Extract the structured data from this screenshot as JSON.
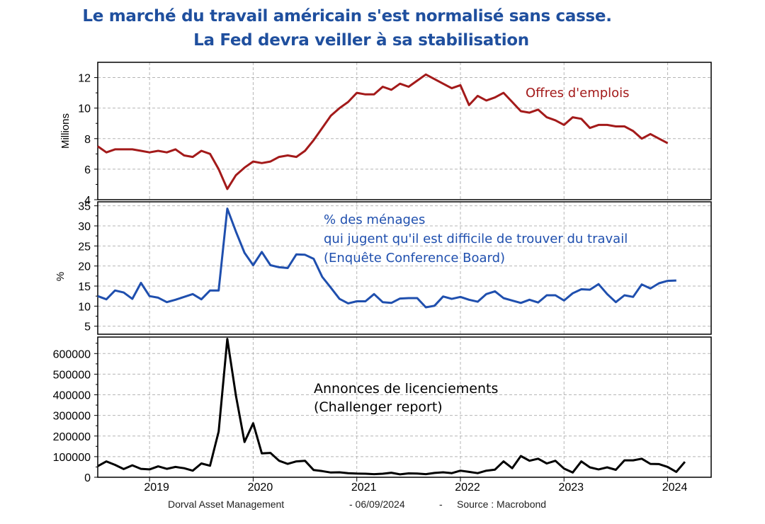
{
  "title_line1": "Le marché du travail américain s'est normalisé sans casse.",
  "title_line2": "La Fed devra veiller à sa stabilisation",
  "footer": {
    "author": "Dorval Asset Management",
    "date": "- 06/09/2024",
    "sep": "-",
    "source": "Source : Macrobond"
  },
  "chart_data": [
    {
      "type": "line",
      "annotation": "Offres d'emplois",
      "ylabel": "Millions",
      "ylim": [
        4,
        13
      ],
      "yticks": [
        4,
        6,
        8,
        10,
        12
      ],
      "color": "#a31a1a",
      "x_start": 2018.5,
      "x_step": 0.0833333,
      "values": [
        7.5,
        7.1,
        7.3,
        7.3,
        7.3,
        7.2,
        7.1,
        7.2,
        7.1,
        7.3,
        6.9,
        6.8,
        7.2,
        7.0,
        6.0,
        4.7,
        5.6,
        6.1,
        6.5,
        6.4,
        6.5,
        6.8,
        6.9,
        6.8,
        7.2,
        7.9,
        8.7,
        9.5,
        10.0,
        10.4,
        11.0,
        10.9,
        10.9,
        11.4,
        11.2,
        11.6,
        11.4,
        11.8,
        12.2,
        11.9,
        11.6,
        11.3,
        11.5,
        10.2,
        10.8,
        10.5,
        10.7,
        11.0,
        10.4,
        9.8,
        9.7,
        9.9,
        9.4,
        9.2,
        8.9,
        9.4,
        9.3,
        8.7,
        8.9,
        8.9,
        8.8,
        8.8,
        8.5,
        8.0,
        8.3,
        8.0,
        7.7
      ]
    },
    {
      "type": "line",
      "annotation": [
        "% des ménages",
        "qui jugent qu'il est difficile de trouver du travail",
        "(Enquête Conference Board)"
      ],
      "ylabel": "%",
      "ylim": [
        3,
        36
      ],
      "yticks": [
        5,
        10,
        15,
        20,
        25,
        30,
        35
      ],
      "color": "#1f4fae",
      "x_start": 2018.5,
      "x_step": 0.0833333,
      "values": [
        12.5,
        11.7,
        13.9,
        13.4,
        11.8,
        15.8,
        12.5,
        12.1,
        11.0,
        11.6,
        12.3,
        13.0,
        11.7,
        13.9,
        13.9,
        34.3,
        28.6,
        23.3,
        20.2,
        23.5,
        20.2,
        19.7,
        19.5,
        22.9,
        22.8,
        21.8,
        17.3,
        14.6,
        11.8,
        10.7,
        11.2,
        11.2,
        13.0,
        11.0,
        10.8,
        11.9,
        12.0,
        12.0,
        9.7,
        10.1,
        12.4,
        11.8,
        12.3,
        11.6,
        11.1,
        13.0,
        13.7,
        12.0,
        11.4,
        10.8,
        11.6,
        10.9,
        12.7,
        12.7,
        11.4,
        13.2,
        14.2,
        14.1,
        15.5,
        13.0,
        11.0,
        12.7,
        12.3,
        15.4,
        14.4,
        15.7,
        16.3,
        16.4
      ]
    },
    {
      "type": "line",
      "annotation": [
        "Annonces de licenciements",
        "(Challenger report)"
      ],
      "ylabel": "",
      "ylim": [
        0,
        680000
      ],
      "yticks": [
        0,
        100000,
        200000,
        300000,
        400000,
        500000,
        600000
      ],
      "color": "#000000",
      "x_start": 2018.5,
      "x_step": 0.0833333,
      "values": [
        54000,
        77000,
        60000,
        40000,
        58000,
        41000,
        38000,
        53000,
        41000,
        50000,
        44000,
        32000,
        67000,
        56000,
        222000,
        671000,
        397000,
        171000,
        262000,
        116000,
        118000,
        80000,
        65000,
        77000,
        80000,
        35000,
        30000,
        23000,
        24000,
        20000,
        18000,
        17000,
        15000,
        17000,
        22000,
        14000,
        19000,
        18000,
        15000,
        21000,
        24000,
        20000,
        32000,
        26000,
        20000,
        32000,
        37000,
        77000,
        44000,
        103000,
        80000,
        90000,
        67000,
        80000,
        42000,
        23000,
        77000,
        48000,
        38000,
        48000,
        36000,
        82000,
        82000,
        90000,
        65000,
        64000,
        50000,
        26000,
        75000
      ]
    }
  ],
  "x_axis": {
    "xlim": [
      2018.5,
      2024.42
    ],
    "tick_labels": [
      "2019",
      "2020",
      "2021",
      "2022",
      "2023",
      "2024"
    ],
    "tick_values": [
      2019,
      2020,
      2021,
      2022,
      2023,
      2024
    ]
  }
}
